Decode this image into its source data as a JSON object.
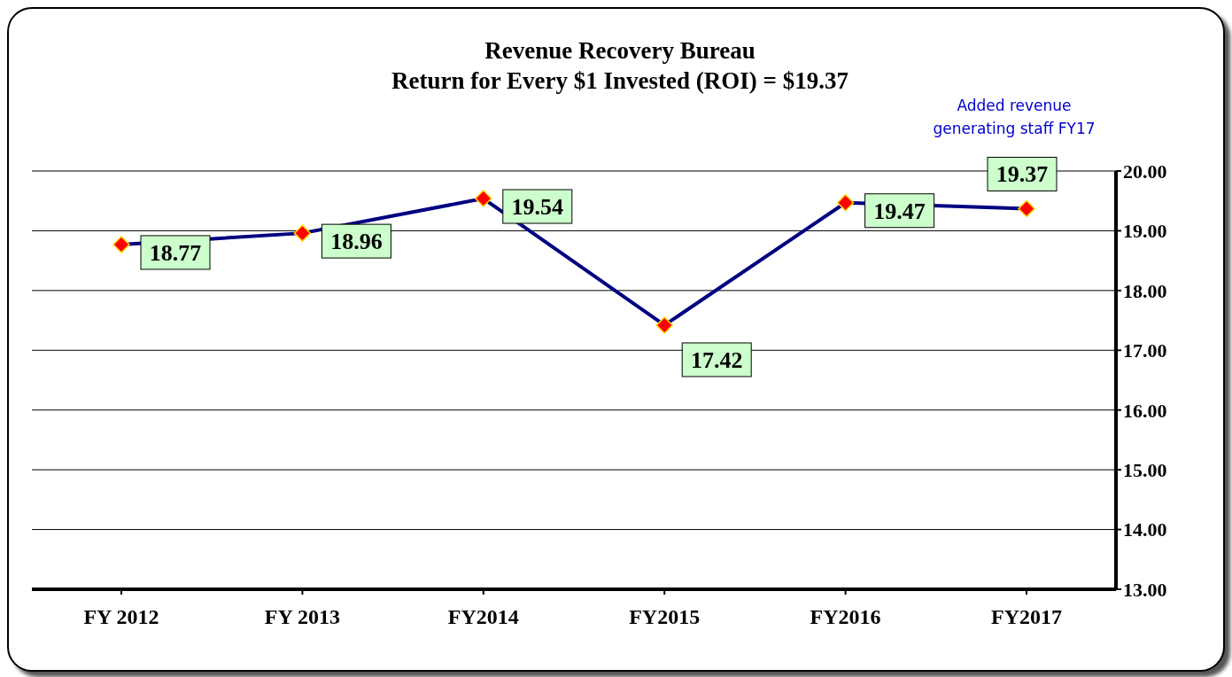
{
  "chart_data": {
    "type": "line",
    "title": "Revenue Recovery Bureau",
    "subtitle": "Return for Every $1 Invested (ROI) = $19.37",
    "categories": [
      "FY 2012",
      "FY 2013",
      "FY2014",
      "FY2015",
      "FY2016",
      "FY2017"
    ],
    "series": [
      {
        "color": "#000080",
        "values": [
          18.77,
          18.96,
          19.54,
          17.42,
          19.47,
          19.37
        ]
      }
    ],
    "marker": "diamond",
    "line_style": "solid",
    "data_labels": true,
    "grid": "y",
    "legend": false,
    "ylim": [
      13,
      20
    ],
    "yticks": [
      {
        "value": 13,
        "label": "13.00"
      },
      {
        "value": 14,
        "label": "14.00"
      },
      {
        "value": 15,
        "label": "15.00"
      },
      {
        "value": 16,
        "label": "16.00"
      },
      {
        "value": 17,
        "label": "17.00"
      },
      {
        "value": 18,
        "label": "18.00"
      },
      {
        "value": 19,
        "label": "19.00"
      },
      {
        "value": 20,
        "label": "20.00"
      }
    ],
    "annotations": [
      "Added revenue generating staff FY17"
    ]
  }
}
